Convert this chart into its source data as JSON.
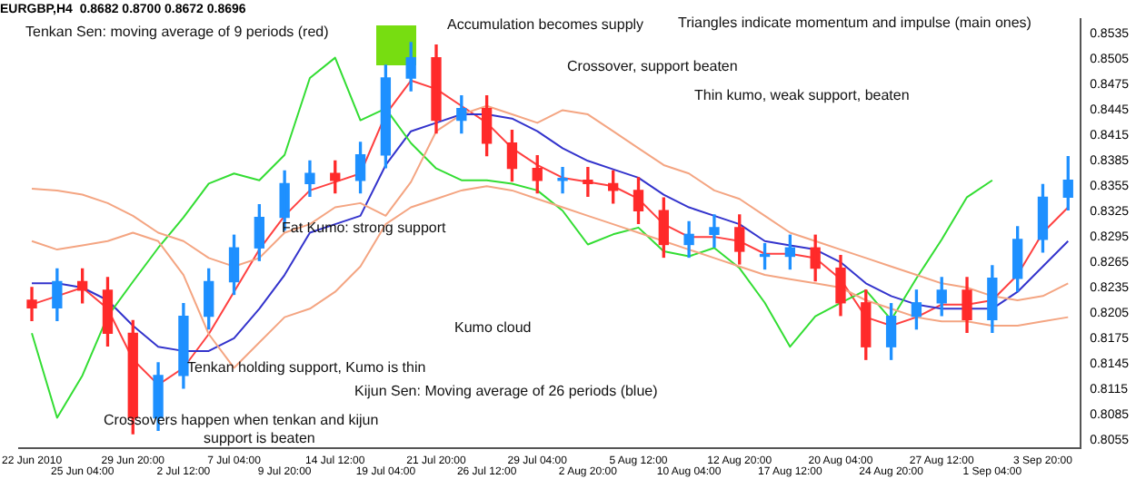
{
  "chart_data": {
    "type": "candlestick",
    "title": "EURGBP,H4  0.8682 0.8700 0.8672 0.8696",
    "categories": [
      "22 Jun 2010",
      null,
      "25 Jun 04:00",
      null,
      "29 Jun 20:00",
      null,
      "2 Jul 12:00",
      null,
      "7 Jul 04:00",
      null,
      "9 Jul 20:00",
      null,
      "14 Jul 12:00",
      null,
      "19 Jul 04:00",
      null,
      "21 Jul 20:00",
      null,
      "26 Jul 12:00",
      null,
      "29 Jul 04:00",
      null,
      "2 Aug 20:00",
      null,
      "5 Aug 12:00",
      null,
      "10 Aug 04:00",
      null,
      "12 Aug 20:00",
      null,
      "17 Aug 12:00",
      null,
      "20 Aug 04:00",
      null,
      "24 Aug 20:00",
      null,
      "27 Aug 12:00",
      null,
      "1 Sep 04:00",
      null,
      "3 Sep 20:00",
      null
    ],
    "ohlc": [
      [
        0.822,
        0.8235,
        0.8196,
        0.8211
      ],
      [
        0.8211,
        0.8257,
        0.8196,
        0.8242
      ],
      [
        0.8242,
        0.8257,
        0.8217,
        0.8232
      ],
      [
        0.8232,
        0.8247,
        0.8166,
        0.8181
      ],
      [
        0.8181,
        0.8196,
        0.8062,
        0.8081
      ],
      [
        0.8081,
        0.8146,
        0.8066,
        0.8131
      ],
      [
        0.8131,
        0.8216,
        0.8116,
        0.8201
      ],
      [
        0.8201,
        0.8257,
        0.8186,
        0.8242
      ],
      [
        0.8242,
        0.8297,
        0.8227,
        0.8282
      ],
      [
        0.8282,
        0.8333,
        0.8267,
        0.8318
      ],
      [
        0.8318,
        0.8373,
        0.8303,
        0.8358
      ],
      [
        0.8358,
        0.8385,
        0.8343,
        0.837
      ],
      [
        0.837,
        0.8385,
        0.8347,
        0.8362
      ],
      [
        0.8362,
        0.8407,
        0.8347,
        0.8392
      ],
      [
        0.8392,
        0.8498,
        0.8377,
        0.8483
      ],
      [
        0.8483,
        0.8525,
        0.8468,
        0.8507
      ],
      [
        0.8507,
        0.8522,
        0.8418,
        0.8433
      ],
      [
        0.8433,
        0.8462,
        0.8418,
        0.8447
      ],
      [
        0.8447,
        0.8462,
        0.8391,
        0.8406
      ],
      [
        0.8406,
        0.8421,
        0.8361,
        0.8376
      ],
      [
        0.8376,
        0.8391,
        0.8347,
        0.8362
      ],
      [
        0.8362,
        0.8377,
        0.8347,
        0.8362
      ],
      [
        0.8362,
        0.8377,
        0.8343,
        0.8358
      ],
      [
        0.8358,
        0.8373,
        0.8335,
        0.835
      ],
      [
        0.835,
        0.8365,
        0.8311,
        0.8326
      ],
      [
        0.8326,
        0.8341,
        0.8271,
        0.8286
      ],
      [
        0.8286,
        0.8313,
        0.8271,
        0.8298
      ],
      [
        0.8298,
        0.8321,
        0.8283,
        0.8306
      ],
      [
        0.8306,
        0.8321,
        0.8263,
        0.8278
      ],
      [
        0.8272,
        0.8287,
        0.8257,
        0.8272
      ],
      [
        0.8272,
        0.8297,
        0.8257,
        0.8282
      ],
      [
        0.8282,
        0.8297,
        0.8243,
        0.8258
      ],
      [
        0.8258,
        0.8273,
        0.8202,
        0.8217
      ],
      [
        0.8217,
        0.8232,
        0.815,
        0.8165
      ],
      [
        0.8165,
        0.8216,
        0.815,
        0.8201
      ],
      [
        0.8201,
        0.8232,
        0.8186,
        0.8217
      ],
      [
        0.8217,
        0.8247,
        0.8202,
        0.8232
      ],
      [
        0.8232,
        0.8247,
        0.8182,
        0.8197
      ],
      [
        0.8197,
        0.8261,
        0.8182,
        0.8246
      ],
      [
        0.8246,
        0.8307,
        0.8231,
        0.8292
      ],
      [
        0.8292,
        0.8357,
        0.8277,
        0.8342
      ],
      [
        0.8342,
        0.839,
        0.8327,
        0.8362
      ]
    ],
    "colors": [
      "#ff2a2a",
      "#1e90ff",
      "#ff2a2a",
      "#ff2a2a",
      "#ff2a2a",
      "#1e90ff",
      "#1e90ff",
      "#1e90ff",
      "#1e90ff",
      "#1e90ff",
      "#1e90ff",
      "#1e90ff",
      "#ff2a2a",
      "#1e90ff",
      "#1e90ff",
      "#1e90ff",
      "#ff2a2a",
      "#1e90ff",
      "#ff2a2a",
      "#ff2a2a",
      "#ff2a2a",
      "#1e90ff",
      "#ff2a2a",
      "#ff2a2a",
      "#ff2a2a",
      "#ff2a2a",
      "#1e90ff",
      "#1e90ff",
      "#ff2a2a",
      "#1e90ff",
      "#1e90ff",
      "#ff2a2a",
      "#ff2a2a",
      "#ff2a2a",
      "#1e90ff",
      "#1e90ff",
      "#1e90ff",
      "#ff2a2a",
      "#1e90ff",
      "#1e90ff",
      "#1e90ff",
      "#1e90ff"
    ],
    "series": [
      {
        "type": "line",
        "color": "#f4a582",
        "values": [
          0.8352,
          0.835,
          0.8345,
          0.8335,
          0.832,
          0.83,
          0.829,
          0.827,
          0.826,
          0.827,
          0.83,
          0.831,
          0.833,
          0.8335,
          0.832,
          0.836,
          0.842,
          0.844,
          0.845,
          0.844,
          0.843,
          0.8445,
          0.844,
          0.842,
          0.84,
          0.838,
          0.837,
          0.835,
          0.834,
          0.832,
          0.83,
          0.829,
          0.828,
          0.827,
          0.826,
          0.825,
          0.824,
          0.8235,
          0.8225,
          0.822,
          0.8225,
          0.824
        ]
      },
      {
        "type": "line",
        "color": "#f4a582",
        "values": [
          0.829,
          0.828,
          0.8285,
          0.829,
          0.83,
          0.829,
          0.825,
          0.818,
          0.814,
          0.817,
          0.82,
          0.821,
          0.823,
          0.826,
          0.831,
          0.833,
          0.834,
          0.835,
          0.8355,
          0.835,
          0.834,
          0.833,
          0.832,
          0.831,
          0.83,
          0.829,
          0.828,
          0.827,
          0.826,
          0.825,
          0.8245,
          0.824,
          0.8235,
          0.822,
          0.821,
          0.82,
          0.8195,
          0.8195,
          0.819,
          0.819,
          0.8195,
          0.82
        ]
      },
      {
        "type": "line",
        "color": "#33dd33",
        "values": [
          0.8181,
          0.8081,
          0.8131,
          0.8201,
          0.8242,
          0.8282,
          0.8318,
          0.8358,
          0.837,
          0.8362,
          0.8392,
          0.8483,
          0.8507,
          0.8433,
          0.8447,
          0.8406,
          0.8376,
          0.8362,
          0.8362,
          0.8358,
          0.835,
          0.8326,
          0.8286,
          0.8298,
          0.8306,
          0.8278,
          0.8272,
          0.8282,
          0.8258,
          0.8217,
          0.8165,
          0.8201,
          0.8217,
          0.8232,
          0.8197,
          0.8246,
          0.8292,
          0.8342,
          0.8362,
          null,
          null,
          null
        ]
      },
      {
        "type": "line",
        "color": "#3333cc",
        "values": [
          0.824,
          0.824,
          0.8235,
          0.822,
          0.819,
          0.8165,
          0.816,
          0.816,
          0.8175,
          0.821,
          0.825,
          0.83,
          0.831,
          0.832,
          0.838,
          0.842,
          0.843,
          0.844,
          0.844,
          0.8435,
          0.842,
          0.84,
          0.8385,
          0.8375,
          0.8365,
          0.8345,
          0.833,
          0.832,
          0.831,
          0.829,
          0.8285,
          0.828,
          0.8265,
          0.824,
          0.8225,
          0.8215,
          0.821,
          0.821,
          0.821,
          0.823,
          0.826,
          0.829
        ]
      },
      {
        "type": "line",
        "color": "#ff4040",
        "values": [
          0.8215,
          0.8225,
          0.8235,
          0.821,
          0.815,
          0.812,
          0.814,
          0.818,
          0.823,
          0.828,
          0.832,
          0.835,
          0.836,
          0.837,
          0.844,
          0.848,
          0.847,
          0.845,
          0.843,
          0.84,
          0.838,
          0.8365,
          0.836,
          0.8355,
          0.834,
          0.831,
          0.8295,
          0.8295,
          0.829,
          0.8275,
          0.8275,
          0.827,
          0.8245,
          0.82,
          0.819,
          0.82,
          0.8215,
          0.8215,
          0.822,
          0.825,
          0.83,
          0.833
        ]
      }
    ],
    "ylim": [
      0.8045,
      0.8553
    ],
    "yticks": [
      0.8535,
      0.8505,
      0.8475,
      0.8445,
      0.8415,
      0.8385,
      0.8355,
      0.8325,
      0.8295,
      0.8265,
      0.8235,
      0.8205,
      0.8175,
      0.8145,
      0.8115,
      0.8085,
      0.8055
    ],
    "annotations": [
      "Tenkan Sen: moving average of 9 periods (red)",
      "Accumulation becomes supply",
      "Triangles indicate momentum and impulse (main ones)",
      "Crossover, support beaten",
      "Thin kumo, weak support, beaten",
      "Fat Kumo: strong support",
      "Kumo cloud",
      "Tenkan holding support, Kumo is thin",
      "Kijun Sen: Moving average of 26 periods (blue)",
      "Crossovers happen when tenkan and kijun",
      "support is beaten"
    ]
  }
}
